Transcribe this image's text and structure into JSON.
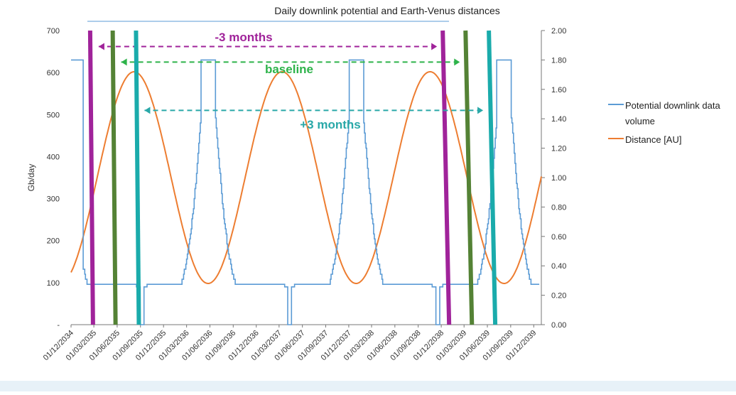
{
  "chart_data": {
    "type": "line",
    "title": "Daily downlink potential and Earth-Venus distances",
    "ylabel": "Gb/day",
    "y_left": {
      "min": 0,
      "max": 700,
      "ticks": [
        {
          "v": 0,
          "label": "-"
        },
        {
          "v": 100,
          "label": "100"
        },
        {
          "v": 200,
          "label": "200"
        },
        {
          "v": 300,
          "label": "300"
        },
        {
          "v": 400,
          "label": "400"
        },
        {
          "v": 500,
          "label": "500"
        },
        {
          "v": 600,
          "label": "600"
        },
        {
          "v": 700,
          "label": "700"
        }
      ]
    },
    "y_right": {
      "min": 0,
      "max": 2.0,
      "ticks": [
        "0.00",
        "0.20",
        "0.40",
        "0.60",
        "0.80",
        "1.00",
        "1.20",
        "1.40",
        "1.60",
        "1.80",
        "2.00"
      ]
    },
    "x_ticks": [
      "01/12/2034",
      "01/03/2035",
      "01/06/2035",
      "01/09/2035",
      "01/12/2035",
      "01/03/2036",
      "01/06/2036",
      "01/09/2036",
      "01/12/2036",
      "01/03/2037",
      "01/06/2037",
      "01/09/2037",
      "01/12/2037",
      "01/03/2038",
      "01/06/2038",
      "01/09/2038",
      "01/12/2038",
      "01/03/2039",
      "01/06/2039",
      "01/09/2039",
      "01/12/2039"
    ],
    "series": [
      {
        "name": "Potential downlink data volume",
        "axis": "left",
        "color": "#5b9bd5"
      },
      {
        "name": "Distance [AU]",
        "axis": "right",
        "color": "#ed7d31"
      }
    ],
    "distance_model": {
      "min_au": 0.28,
      "max_au": 1.72,
      "minima": [
        "2036-05-25",
        "2037-12-30",
        "2039-08-05"
      ],
      "synodic_days": 584
    },
    "downlink_model": {
      "plateau_gb": 630,
      "floor_gb": 90,
      "outage_gb": 0,
      "plateau_centers": [
        "2034-12-20",
        "2036-05-25",
        "2037-12-30",
        "2039-08-05"
      ]
    },
    "windows": [
      {
        "label": "-3 months",
        "color": "#a0239a",
        "start": "2035-02-20",
        "end": "2038-12-18",
        "arrow_y_gb": 662
      },
      {
        "label": "baseline",
        "color": "#2db34a",
        "start": "2035-05-20",
        "end": "2039-03-18",
        "arrow_y_gb": 625,
        "bar_color": "#548235"
      },
      {
        "label": "+3 months",
        "color": "#29a8a8",
        "start": "2035-08-20",
        "end": "2039-06-18",
        "arrow_y_gb": 510,
        "bar_color": "#1aabab"
      }
    ],
    "legend": {
      "position": "right"
    }
  }
}
